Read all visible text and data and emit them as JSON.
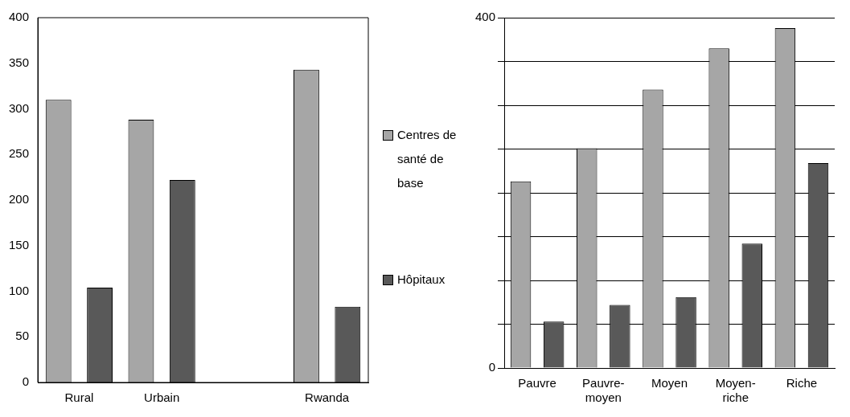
{
  "chart_data": [
    {
      "type": "bar",
      "categories": [
        "Rural",
        "Urbain",
        null,
        "Rwanda"
      ],
      "ylim": [
        0,
        400
      ],
      "yticks": [
        0,
        50,
        100,
        150,
        200,
        250,
        300,
        350,
        400
      ],
      "grid": false,
      "legend": "right",
      "series": [
        {
          "name": "Centres de santé de base",
          "color": "#a6a6a6",
          "values": [
            310,
            288,
            null,
            343
          ]
        },
        {
          "name": "Hôpitaux",
          "color": "#595959",
          "values": [
            104,
            222,
            null,
            83
          ]
        }
      ]
    },
    {
      "type": "bar",
      "categories": [
        "Pauvre",
        "Pauvre-moyen",
        "Moyen",
        "Moyen-riche",
        "Riche"
      ],
      "ylim": [
        0,
        400
      ],
      "yticks": [
        0,
        {
          "value": 50,
          "label": null
        },
        {
          "value": 100,
          "label": null
        },
        {
          "value": 150,
          "label": null
        },
        {
          "value": 200,
          "label": null
        },
        {
          "value": 250,
          "label": null
        },
        {
          "value": 300,
          "label": null
        },
        {
          "value": 350,
          "label": null
        },
        400
      ],
      "grid": "y",
      "series": [
        {
          "color": "#a6a6a6",
          "values": [
            213,
            251,
            318,
            365,
            388
          ]
        },
        {
          "color": "#595959",
          "values": [
            53,
            72,
            81,
            142,
            234
          ]
        }
      ]
    }
  ]
}
